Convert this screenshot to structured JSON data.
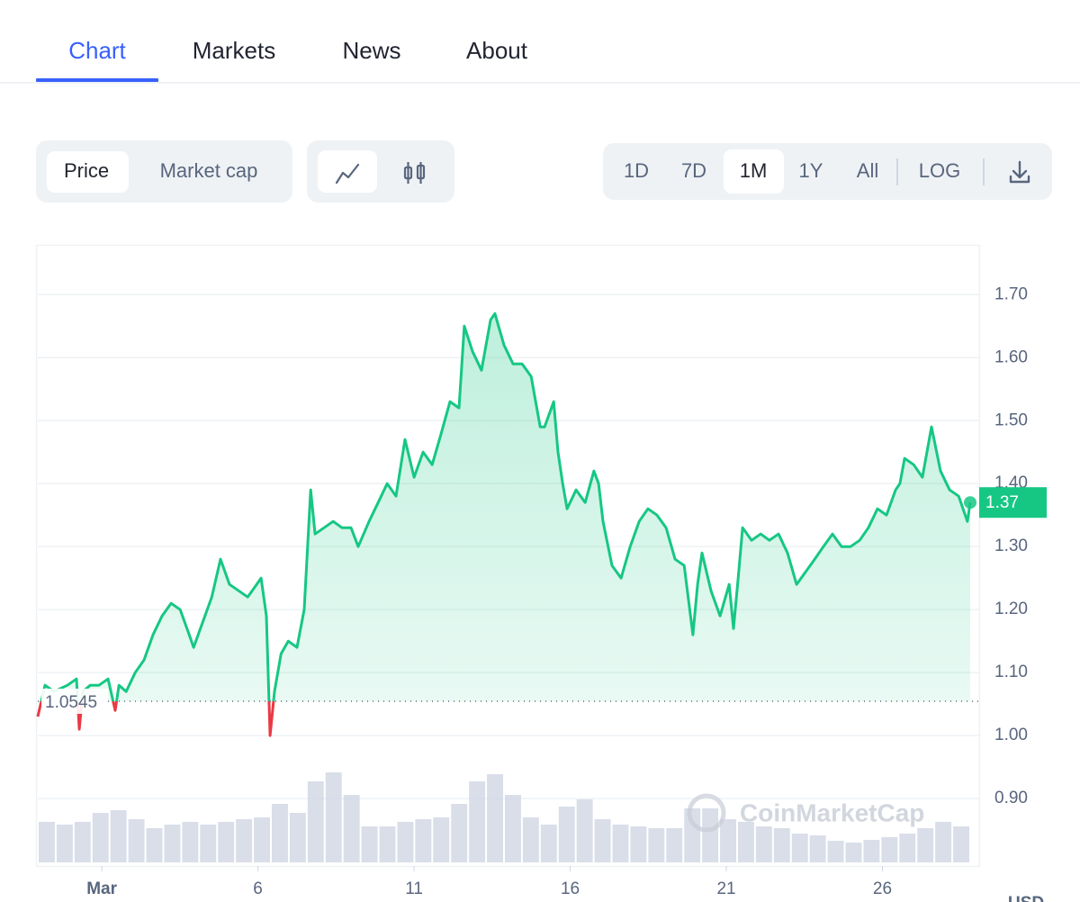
{
  "tabs": [
    {
      "label": "Chart",
      "active": true
    },
    {
      "label": "Markets"
    },
    {
      "label": "News"
    },
    {
      "label": "About"
    }
  ],
  "metric_toggle": [
    {
      "label": "Price",
      "active": true
    },
    {
      "label": "Market cap"
    }
  ],
  "ranges": [
    {
      "label": "1D"
    },
    {
      "label": "7D"
    },
    {
      "label": "1M",
      "active": true
    },
    {
      "label": "1Y"
    },
    {
      "label": "All"
    },
    {
      "label": "LOG"
    }
  ],
  "chart_data": {
    "type": "line",
    "x": [
      -1.05,
      -0.82,
      -0.53,
      -0.1,
      0.19,
      0.28,
      0.39,
      0.63,
      0.91,
      1.2,
      1.43,
      1.55,
      1.78,
      2.07,
      2.35,
      2.64,
      2.93,
      3.22,
      3.51,
      3.8,
      3.94,
      4.23,
      4.52,
      4.8,
      5.09,
      5.38,
      5.67,
      5.96,
      6.1,
      6.27,
      6.39,
      6.53,
      6.74,
      6.97,
      7.25,
      7.48,
      7.69,
      7.83,
      8.12,
      8.41,
      8.69,
      8.98,
      9.21,
      9.56,
      9.85,
      10.14,
      10.42,
      10.71,
      11.0,
      11.29,
      11.58,
      11.87,
      12.15,
      12.44,
      12.61,
      12.87,
      13.16,
      13.45,
      13.59,
      13.88,
      14.17,
      14.46,
      14.75,
      15.04,
      15.18,
      15.47,
      15.61,
      15.76,
      15.9,
      16.19,
      16.48,
      16.76,
      16.91,
      17.05,
      17.34,
      17.63,
      17.92,
      18.21,
      18.49,
      18.78,
      19.07,
      19.36,
      19.65,
      19.93,
      20.08,
      20.22,
      20.51,
      20.8,
      21.09,
      21.23,
      21.38,
      21.52,
      21.81,
      22.1,
      22.38,
      22.67,
      22.96,
      23.25,
      23.54,
      23.83,
      24.11,
      24.4,
      24.69,
      24.98,
      25.27,
      25.55,
      25.84,
      26.13,
      26.42,
      26.56,
      26.71,
      27.0,
      27.28,
      27.57,
      27.86,
      28.15,
      28.44,
      28.72,
      28.81
    ],
    "series": [
      {
        "name": "Price",
        "color": "#16c784",
        "color_below": "#ea3943",
        "values": [
          1.03,
          1.08,
          1.07,
          1.08,
          1.09,
          1.01,
          1.07,
          1.08,
          1.08,
          1.09,
          1.04,
          1.08,
          1.07,
          1.1,
          1.12,
          1.16,
          1.19,
          1.21,
          1.2,
          1.16,
          1.14,
          1.18,
          1.22,
          1.28,
          1.24,
          1.23,
          1.22,
          1.24,
          1.25,
          1.19,
          1.0,
          1.07,
          1.13,
          1.15,
          1.14,
          1.2,
          1.39,
          1.32,
          1.33,
          1.34,
          1.33,
          1.33,
          1.3,
          1.34,
          1.37,
          1.4,
          1.38,
          1.47,
          1.41,
          1.45,
          1.43,
          1.48,
          1.53,
          1.52,
          1.65,
          1.61,
          1.58,
          1.66,
          1.67,
          1.62,
          1.59,
          1.59,
          1.57,
          1.49,
          1.49,
          1.53,
          1.45,
          1.4,
          1.36,
          1.39,
          1.37,
          1.42,
          1.4,
          1.34,
          1.27,
          1.25,
          1.3,
          1.34,
          1.36,
          1.35,
          1.33,
          1.28,
          1.27,
          1.16,
          1.24,
          1.29,
          1.23,
          1.19,
          1.24,
          1.17,
          1.25,
          1.33,
          1.31,
          1.32,
          1.31,
          1.32,
          1.29,
          1.24,
          1.26,
          1.28,
          1.3,
          1.32,
          1.3,
          1.3,
          1.31,
          1.33,
          1.36,
          1.35,
          1.39,
          1.4,
          1.44,
          1.43,
          1.41,
          1.49,
          1.42,
          1.39,
          1.38,
          1.34,
          1.37
        ]
      }
    ],
    "volume": {
      "color": "#cfd6e4",
      "values": [
        45,
        42,
        45,
        55,
        58,
        48,
        38,
        42,
        45,
        42,
        45,
        48,
        50,
        65,
        55,
        90,
        100,
        75,
        40,
        40,
        45,
        48,
        50,
        65,
        90,
        98,
        75,
        50,
        42,
        62,
        70,
        48,
        42,
        40,
        38,
        38,
        60,
        60,
        48,
        45,
        40,
        38,
        32,
        30,
        24,
        22,
        25,
        28,
        32,
        38,
        45,
        40
      ]
    },
    "xlim": [
      -1.05,
      28.81
    ],
    "xticks": [
      {
        "value": 1,
        "label": "Mar"
      },
      6,
      11,
      16,
      21,
      26
    ],
    "ylim": [
      0.793,
      1.779
    ],
    "yticks": [
      {
        "value": 0.9,
        "label": "0.90"
      },
      {
        "value": 1.0,
        "label": "1.00"
      },
      {
        "value": 1.1,
        "label": "1.10"
      },
      {
        "value": 1.2,
        "label": "1.20"
      },
      {
        "value": 1.3,
        "label": "1.30"
      },
      {
        "value": 1.4,
        "label": "1.40"
      },
      {
        "value": 1.5,
        "label": "1.50"
      },
      {
        "value": 1.6,
        "label": "1.60"
      },
      {
        "value": 1.7,
        "label": "1.70"
      }
    ],
    "grid": true,
    "reference_line": {
      "value": 1.0545,
      "label": "1.0545"
    },
    "last_price": {
      "value": 1.37,
      "label": "1.37"
    },
    "unit": "USD",
    "watermark": "CoinMarketCap"
  }
}
